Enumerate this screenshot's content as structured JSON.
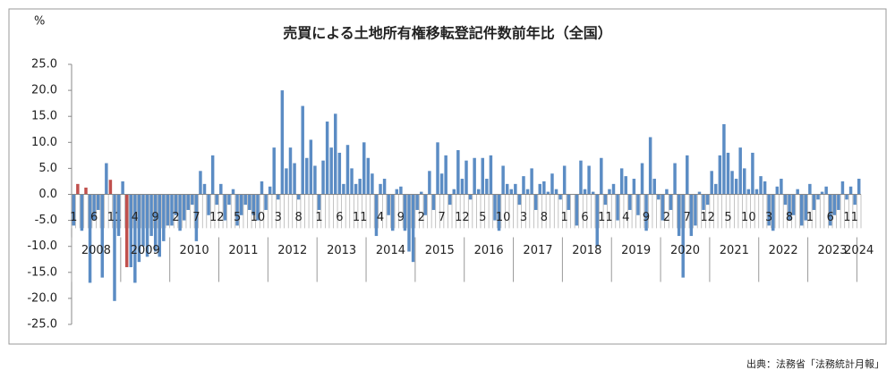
{
  "chart_data": {
    "type": "bar",
    "title": "売買による土地所有権移転登記件数前年比（全国）",
    "unit_label": "%",
    "source": "出典：法務省「法務統計月報」",
    "categories": [
      "1",
      null,
      null,
      null,
      null,
      "6",
      null,
      null,
      null,
      null,
      "11",
      null,
      null,
      null,
      null,
      "4",
      null,
      null,
      null,
      null,
      "9",
      null,
      null,
      null,
      null,
      "2",
      null,
      null,
      null,
      null,
      "7",
      null,
      null,
      null,
      null,
      "12",
      null,
      null,
      null,
      null,
      "5",
      null,
      null,
      null,
      null,
      "10",
      null,
      null,
      null,
      null,
      "3",
      null,
      null,
      null,
      null,
      "8",
      null,
      null,
      null,
      null,
      "1",
      null,
      null,
      null,
      null,
      "6",
      null,
      null,
      null,
      null,
      "11",
      null,
      null,
      null,
      null,
      "4",
      null,
      null,
      null,
      null,
      "9",
      null,
      null,
      null,
      null,
      "2",
      null,
      null,
      null,
      null,
      "7",
      null,
      null,
      null,
      null,
      "12",
      null,
      null,
      null,
      null,
      "5",
      null,
      null,
      null,
      null,
      "10",
      null,
      null,
      null,
      null,
      "3",
      null,
      null,
      null,
      null,
      "8",
      null,
      null,
      null,
      null,
      "1",
      null,
      null,
      null,
      null,
      "6",
      null,
      null,
      null,
      null,
      "11",
      null,
      null,
      null,
      null,
      "4",
      null,
      null,
      null,
      null,
      "9",
      null,
      null,
      null,
      null,
      "2",
      null,
      null,
      null,
      null,
      "7",
      null,
      null,
      null,
      null,
      "12",
      null,
      null,
      null,
      null,
      "5",
      null,
      null,
      null,
      null,
      "10",
      null,
      null,
      null,
      null,
      "3",
      null,
      null,
      null,
      null,
      "8",
      null,
      null,
      null,
      null,
      "1",
      null,
      null,
      null,
      null,
      "6",
      null,
      null,
      null,
      null,
      "11",
      null,
      null
    ],
    "years": [
      "2008",
      "2009",
      "2010",
      "2011",
      "2012",
      "2013",
      "2014",
      "2015",
      "2016",
      "2017",
      "2018",
      "2019",
      "2020",
      "2021",
      "2022",
      "2023",
      "2024"
    ],
    "values": [
      -6,
      2,
      -7,
      1.3,
      -17,
      -5,
      -3,
      -16,
      6,
      2.8,
      -20.5,
      -8,
      2.5,
      -14,
      -14,
      -17,
      -13,
      -10,
      -12,
      -8,
      -11,
      -12,
      -9,
      -6,
      -6,
      -4,
      -7,
      -5,
      -3,
      -2,
      -9,
      4.5,
      2,
      -4,
      7.5,
      -2,
      2,
      -5,
      -2,
      1,
      -6,
      -4,
      -2,
      -3,
      -4,
      -5,
      2.5,
      -3,
      1.5,
      9,
      -1,
      20,
      5,
      9,
      6,
      -1,
      17,
      7,
      10.5,
      5.5,
      -3,
      6.5,
      14,
      9,
      15.5,
      8,
      2,
      9.5,
      5,
      2,
      3,
      10,
      7,
      4,
      -8,
      2,
      3,
      -4,
      -7,
      1,
      1.5,
      -7,
      -11,
      -13,
      -3,
      0.5,
      -4,
      4.5,
      -3,
      10,
      4,
      7.5,
      -2,
      1,
      8.5,
      3,
      6.5,
      -1,
      7,
      1,
      7,
      3,
      7.5,
      -5,
      -7,
      5.5,
      2,
      1,
      2,
      -2,
      3.5,
      1,
      5,
      -3,
      2,
      2.5,
      0.5,
      4,
      1,
      -1,
      5.5,
      -3,
      0,
      -6,
      6.5,
      1,
      5.5,
      0.5,
      -10,
      7,
      -2,
      1,
      2,
      -5,
      5,
      3.5,
      -3,
      3,
      -4,
      6,
      -7,
      11,
      3,
      -1,
      -5,
      1,
      -3,
      6,
      -8,
      -16,
      7.5,
      -8,
      -6,
      0.5,
      -3,
      -2,
      4.5,
      2,
      7.5,
      13.5,
      8,
      4.5,
      3,
      9,
      5,
      1,
      8,
      1,
      3.5,
      2.5,
      -6,
      -7,
      1.5,
      3,
      -2,
      -5,
      -4,
      1,
      -6,
      -5,
      2,
      -3,
      -1,
      0.5,
      1.5,
      -6,
      -4,
      -3,
      2.5,
      -1,
      1.5,
      -2,
      3
    ],
    "color": "#5b8cc4",
    "highlight": {
      "color": "#c0504d",
      "indices": [
        1,
        3,
        9,
        13
      ]
    },
    "ylim": [
      -25,
      25
    ],
    "yticks": [
      {
        "value": 25,
        "label": "25.0"
      },
      {
        "value": 20,
        "label": "20.0"
      },
      {
        "value": 15,
        "label": "15.0"
      },
      {
        "value": 10,
        "label": "10.0"
      },
      {
        "value": 5,
        "label": "5.0"
      },
      {
        "value": 0,
        "label": "0.0"
      },
      {
        "value": -5,
        "label": "-5.0"
      },
      {
        "value": -10,
        "label": "-10.0"
      },
      {
        "value": -15,
        "label": "-15.0"
      },
      {
        "value": -20,
        "label": "-20.0"
      },
      {
        "value": -25,
        "label": "-25.0"
      }
    ],
    "grid": false
  }
}
